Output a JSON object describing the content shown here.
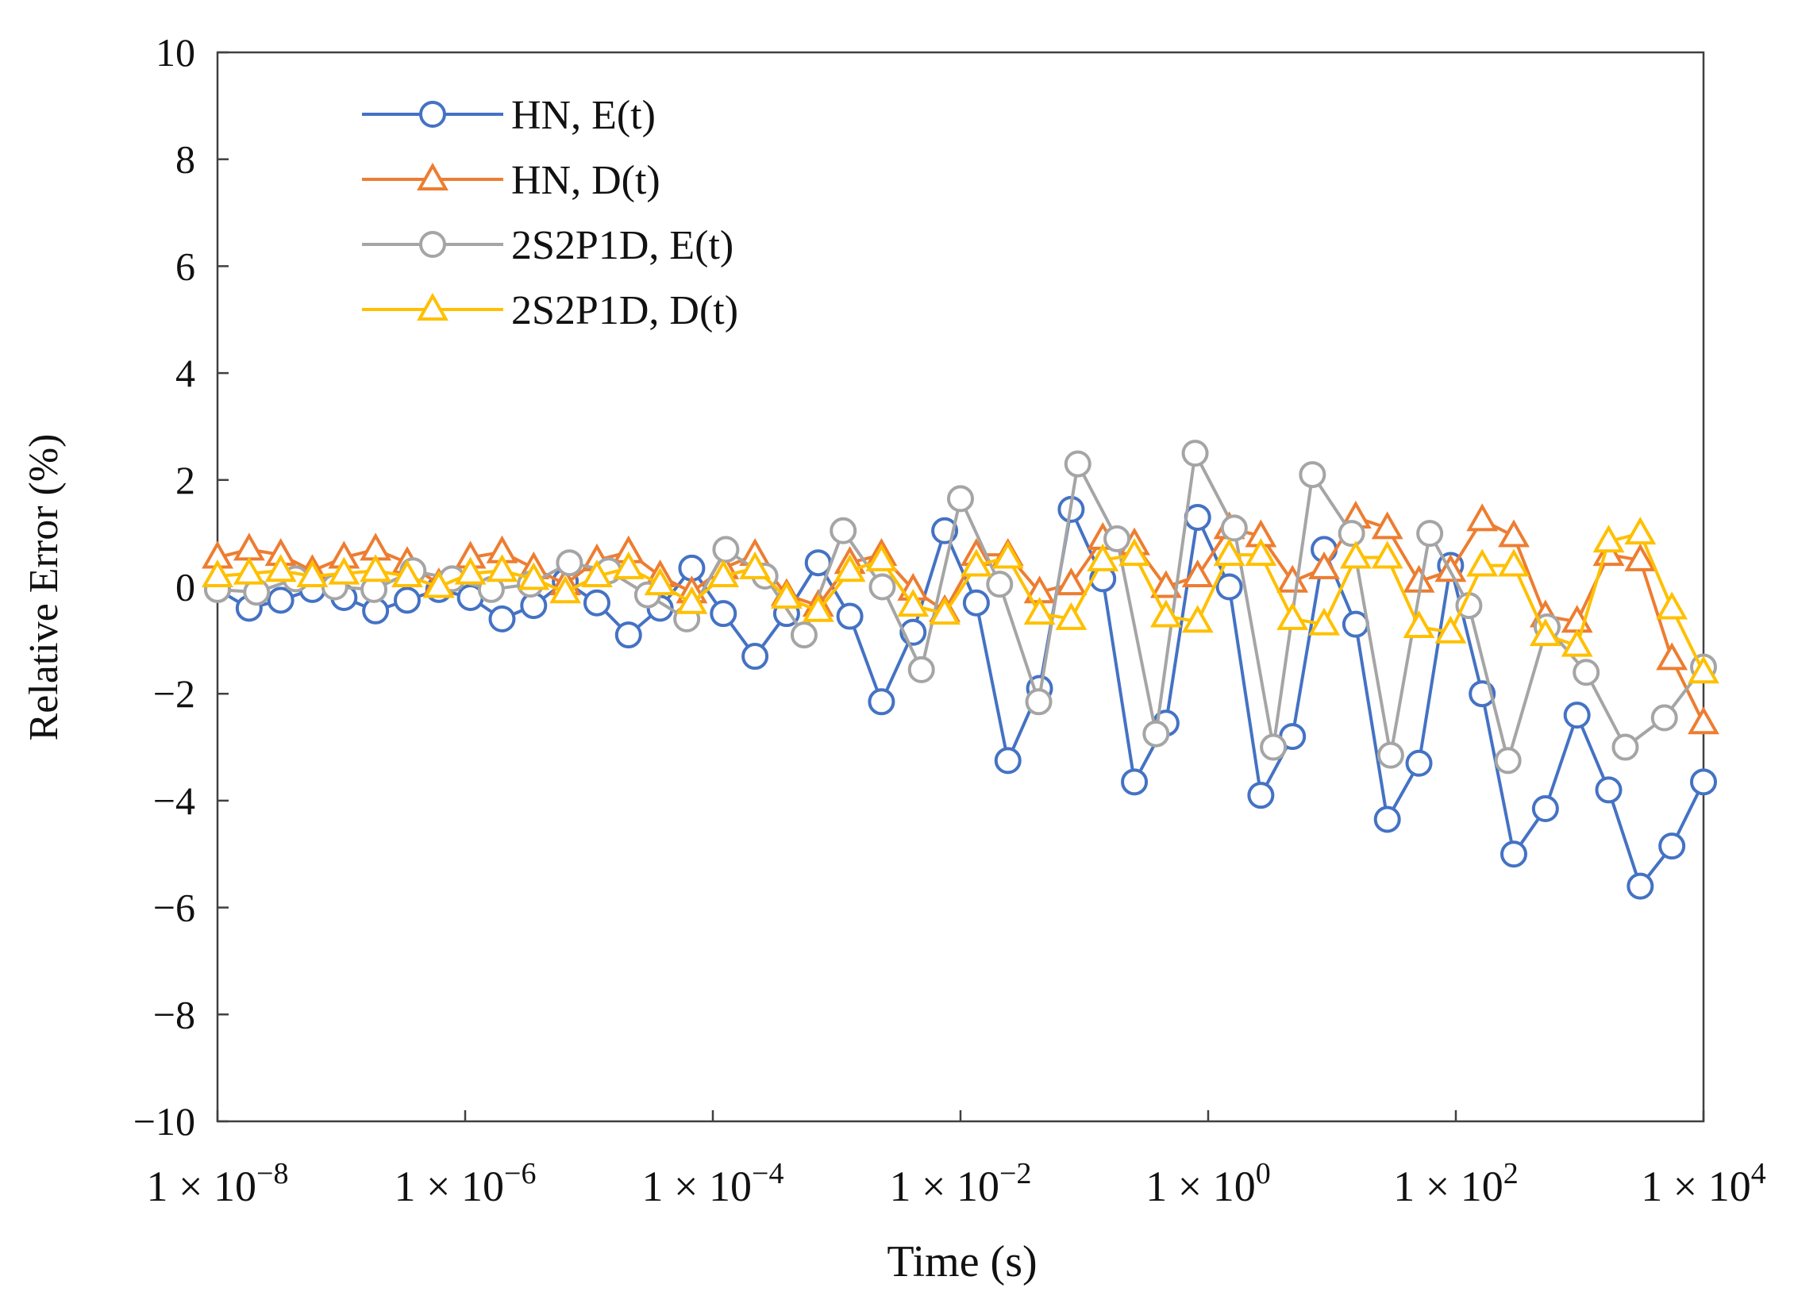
{
  "chart_data": {
    "type": "line",
    "xlabel": "Time (s)",
    "ylabel": "Relative Error (%)",
    "x_scale": "log",
    "xlim": [
      1e-08,
      10000
    ],
    "ylim": [
      -10,
      10
    ],
    "x_tick_values": [
      1e-08,
      1e-06,
      0.0001,
      0.01,
      1,
      100,
      10000
    ],
    "x_tick_labels": [
      {
        "base": "1 × 10",
        "exp": "−8"
      },
      {
        "base": "1 × 10",
        "exp": "−6"
      },
      {
        "base": "1 × 10",
        "exp": "−4"
      },
      {
        "base": "1 × 10",
        "exp": "−2"
      },
      {
        "base": "1 × 10",
        "exp": "0"
      },
      {
        "base": "1 × 10",
        "exp": "2"
      },
      {
        "base": "1 × 10",
        "exp": "4"
      }
    ],
    "y_ticks": [
      10,
      8,
      6,
      4,
      2,
      0,
      -2,
      -4,
      -6,
      -8,
      -10
    ],
    "y_tick_labels": [
      "10",
      "8",
      "6",
      "4",
      "2",
      "0",
      "−2",
      "−4",
      "−6",
      "−8",
      "−10"
    ],
    "grid": false,
    "legend_position": "top-left",
    "x_log10": [
      -8,
      -7.8,
      -7.6,
      -7.4,
      -7.2,
      -7,
      -6.8,
      -6.6,
      -6.4,
      -6.2,
      -6,
      -5.8,
      -5.6,
      -5.4,
      -5.2,
      -5,
      -4.8,
      -4.6,
      -4.4,
      -4.2,
      -4,
      -3.8,
      -3.6,
      -3.4,
      -3.2,
      -3,
      -2.8,
      -2.6,
      -2.4,
      -2.2,
      -2,
      -1.8,
      -1.6,
      -1.4,
      -1.2,
      -1,
      -0.8,
      -0.6,
      -0.4,
      -0.2,
      0,
      0.2,
      0.4,
      0.6,
      0.8,
      1,
      1.2,
      1.4,
      1.6,
      1.8,
      2,
      2.2,
      2.4,
      2.6,
      2.8,
      3,
      3.2,
      3.4,
      3.6,
      3.8,
      4
    ],
    "series": [
      {
        "name": "HN, E(t)",
        "color": "#4472C4",
        "marker": "circle",
        "values": [
          -0.05,
          -0.4,
          -0.25,
          -0.05,
          -0.2,
          -0.45,
          -0.25,
          -0.05,
          -0.2,
          -0.6,
          -0.35,
          0.1,
          -0.3,
          -0.9,
          -0.4,
          0.35,
          -0.5,
          -1.3,
          -0.5,
          0.45,
          -0.55,
          -2.15,
          -0.85,
          1.05,
          -0.3,
          -3.25,
          -1.9,
          1.45,
          0.15,
          -3.65,
          -2.55,
          1.3,
          0.0,
          -3.9,
          -2.8,
          0.7,
          -0.7,
          -4.35,
          -3.3,
          0.4,
          -2.0,
          -5.0,
          -4.15,
          -2.4,
          -3.8,
          -5.6,
          -4.85,
          -3.65
        ]
      },
      {
        "name": "HN, D(t)",
        "color": "#ED7D31",
        "marker": "triangle",
        "values": [
          0.55,
          0.7,
          0.6,
          0.3,
          0.55,
          0.7,
          0.45,
          0.05,
          0.55,
          0.65,
          0.35,
          0.05,
          0.5,
          0.65,
          0.2,
          -0.1,
          0.35,
          0.6,
          -0.15,
          -0.35,
          0.45,
          0.6,
          -0.05,
          -0.45,
          0.6,
          0.6,
          -0.1,
          0.05,
          0.9,
          0.8,
          0.0,
          0.2,
          1.1,
          0.95,
          0.1,
          0.35,
          1.3,
          1.1,
          0.1,
          0.3,
          1.25,
          0.95,
          -0.55,
          -0.65,
          0.6,
          0.5,
          -1.35,
          -2.55
        ]
      },
      {
        "name": "2S2P1D, E(t)",
        "color": "#A5A5A5",
        "marker": "circle",
        "values": [
          -0.05,
          -0.1,
          0.15,
          0.0,
          -0.05,
          0.3,
          0.15,
          -0.05,
          0.05,
          0.45,
          0.3,
          -0.15,
          -0.6,
          0.7,
          0.2,
          -0.9,
          1.05,
          0.0,
          -1.55,
          1.65,
          0.05,
          -2.15,
          2.3,
          0.9,
          -2.75,
          2.5,
          1.1,
          -3.0,
          2.1,
          1.0,
          -3.15,
          1.0,
          -0.35,
          -3.25,
          -0.75,
          -1.6,
          -3.0,
          -2.45,
          -1.5
        ]
      },
      {
        "name": "2S2P1D, D(t)",
        "color": "#FFC000",
        "marker": "triangle",
        "values": [
          0.2,
          0.25,
          0.3,
          0.2,
          0.25,
          0.3,
          0.2,
          0.0,
          0.25,
          0.3,
          0.15,
          -0.1,
          0.2,
          0.35,
          0.05,
          -0.3,
          0.2,
          0.35,
          -0.2,
          -0.45,
          0.3,
          0.5,
          -0.35,
          -0.5,
          0.4,
          0.55,
          -0.5,
          -0.6,
          0.5,
          0.6,
          -0.55,
          -0.65,
          0.6,
          0.6,
          -0.6,
          -0.7,
          0.55,
          0.55,
          -0.75,
          -0.85,
          0.4,
          0.4,
          -0.9,
          -1.1,
          0.85,
          1.0,
          -0.4,
          -1.6
        ]
      }
    ]
  }
}
